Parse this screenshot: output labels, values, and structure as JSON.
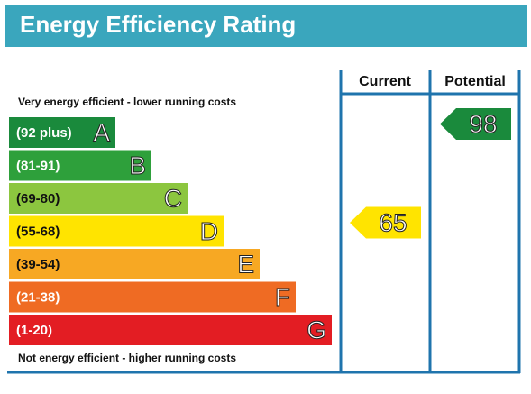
{
  "header": {
    "title": "Energy Efficiency Rating"
  },
  "columns": [
    "Current",
    "Potential"
  ],
  "top_note": "Very energy efficient - lower running costs",
  "bottom_note": "Not energy efficient - higher running costs",
  "bands": [
    {
      "range": "(92 plus)",
      "letter": "A",
      "color": "#1a8a3c"
    },
    {
      "range": "(81-91)",
      "letter": "B",
      "color": "#2ea03b"
    },
    {
      "range": "(69-80)",
      "letter": "C",
      "color": "#8cc63f"
    },
    {
      "range": "(55-68)",
      "letter": "D",
      "color": "#ffe400"
    },
    {
      "range": "(39-54)",
      "letter": "E",
      "color": "#f7a823"
    },
    {
      "range": "(21-38)",
      "letter": "F",
      "color": "#ef6b23"
    },
    {
      "range": "(1-20)",
      "letter": "G",
      "color": "#e31d23"
    }
  ],
  "ratings": {
    "current": 65,
    "potential": 98
  }
}
